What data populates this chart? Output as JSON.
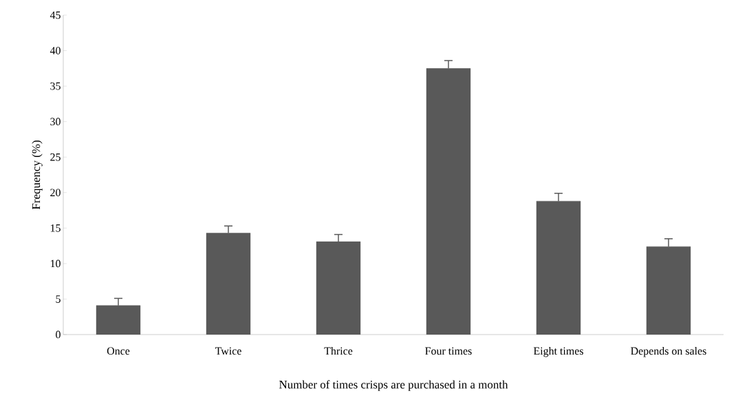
{
  "chart_data": {
    "type": "bar",
    "xlabel": "Number of times crisps are purchased in a month",
    "ylabel": "Frequency (%)",
    "categories": [
      "Once",
      "Twice",
      "Thrice",
      "Four times",
      "Eight times",
      "Depends on sales"
    ],
    "values": [
      4.1,
      14.3,
      13.1,
      37.5,
      18.8,
      12.4
    ],
    "errors": [
      1.0,
      1.0,
      1.0,
      1.1,
      1.1,
      1.1
    ],
    "color": "#595959",
    "ylim": [
      0,
      45
    ],
    "yticks": [
      0,
      5,
      10,
      15,
      20,
      25,
      30,
      35,
      40,
      45
    ],
    "grid": false
  }
}
